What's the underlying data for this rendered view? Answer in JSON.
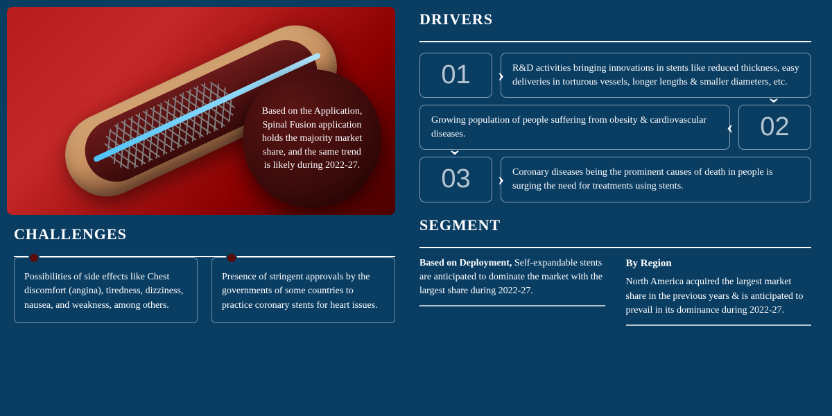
{
  "colors": {
    "background": "#0a3d62",
    "text": "#ffffff",
    "bubble_bg": "#3a0a0a",
    "dot": "#5a0a0a",
    "border": "rgba(255,255,255,0.5)"
  },
  "typography": {
    "body_font": "Georgia, serif",
    "title_size_pt": 22,
    "body_size_pt": 14,
    "driver_num_size_pt": 38
  },
  "bubble": {
    "text": "Based on the Application, Spinal Fusion application holds the majority market share, and the same trend is likely during 2022-27."
  },
  "drivers": {
    "title": "DRIVERS",
    "items": [
      {
        "num": "01",
        "text": "R&D activities bringing innovations in stents like reduced thickness, easy deliveries in torturous vessels, longer lengths & smaller diameters, etc."
      },
      {
        "num": "02",
        "text": "Growing population of people suffering from obesity & cardiovascular diseases."
      },
      {
        "num": "03",
        "text": "Coronary diseases being the prominent causes of death in people is surging the need for treatments using stents."
      }
    ]
  },
  "challenges": {
    "title": "CHALLENGES",
    "items": [
      "Possibilities of side effects like Chest discomfort (angina), tiredness, dizziness, nausea, and weakness, among others.",
      "Presence of stringent approvals by the governments of some countries to practice coronary stents for heart issues."
    ]
  },
  "segment": {
    "title": "SEGMENT",
    "col1_lead": "Based on Deployment,",
    "col1_text": " Self-expandable stents are anticipated to dominate the market with the largest share during 2022-27.",
    "col2_title": "By Region",
    "col2_text": "North America acquired the largest market share in the previous years & is anticipated to prevail in its dominance during 2022-27."
  }
}
